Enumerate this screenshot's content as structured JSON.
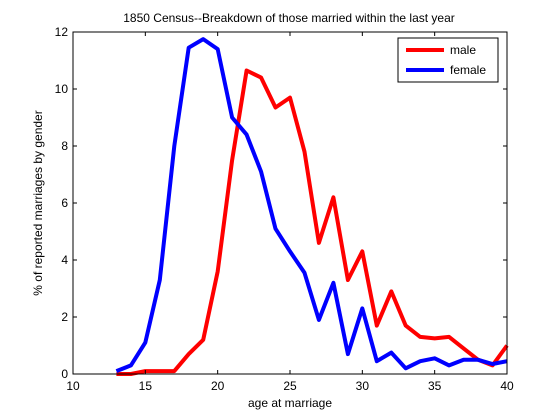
{
  "chart_data": {
    "type": "line",
    "title": "1850 Census--Breakdown of those married within the last year",
    "xlabel": "age at marriage",
    "ylabel": "% of reported marriages by gender",
    "xlim": [
      10,
      40
    ],
    "ylim": [
      0,
      12
    ],
    "xticks": [
      10,
      15,
      20,
      25,
      30,
      35,
      40
    ],
    "yticks": [
      0,
      2,
      4,
      6,
      8,
      10,
      12
    ],
    "grid": false,
    "legend_position": "top-right",
    "series": [
      {
        "name": "male",
        "color": "#ff0000",
        "x": [
          13,
          14,
          15,
          16,
          17,
          18,
          19,
          20,
          21,
          22,
          23,
          24,
          25,
          26,
          27,
          28,
          29,
          30,
          31,
          32,
          33,
          34,
          35,
          36,
          37,
          38,
          39,
          40
        ],
        "y": [
          0.0,
          0.0,
          0.1,
          0.1,
          0.1,
          0.7,
          1.2,
          3.6,
          7.5,
          10.65,
          10.4,
          9.35,
          9.7,
          7.8,
          4.6,
          6.2,
          3.3,
          4.3,
          1.7,
          2.9,
          1.7,
          1.3,
          1.25,
          1.3,
          0.9,
          0.5,
          0.3,
          1.0
        ]
      },
      {
        "name": "female",
        "color": "#0000ff",
        "x": [
          13,
          14,
          15,
          16,
          17,
          18,
          19,
          20,
          21,
          22,
          23,
          24,
          25,
          26,
          27,
          28,
          29,
          30,
          31,
          32,
          33,
          34,
          35,
          36,
          37,
          38,
          39,
          40
        ],
        "y": [
          0.1,
          0.3,
          1.1,
          3.3,
          8.0,
          11.45,
          11.75,
          11.4,
          9.0,
          8.4,
          7.1,
          5.1,
          4.3,
          3.55,
          1.9,
          3.2,
          0.7,
          2.3,
          0.45,
          0.75,
          0.2,
          0.45,
          0.55,
          0.3,
          0.5,
          0.5,
          0.35,
          0.45
        ]
      }
    ]
  }
}
